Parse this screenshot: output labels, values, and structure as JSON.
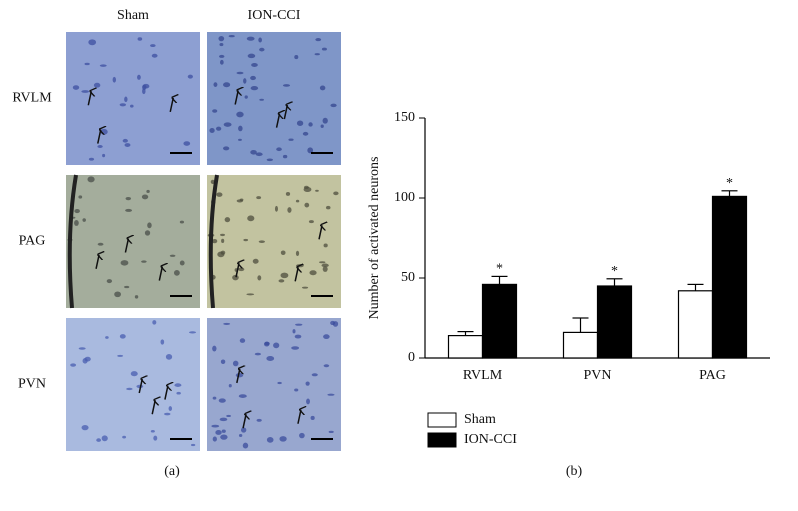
{
  "panel_a": {
    "columns": [
      "Sham",
      "ION-CCI"
    ],
    "rows": [
      "RVLM",
      "PAG",
      "PVN"
    ],
    "label": "(a)"
  },
  "chart_data": {
    "type": "bar",
    "panel_label": "(b)",
    "y_label": "Number of activated neurons",
    "categories": [
      "RVLM",
      "PVN",
      "PAG"
    ],
    "series": [
      {
        "name": "Sham",
        "color": "#ffffff",
        "values": [
          14,
          16,
          42
        ],
        "errors": [
          2.5,
          9,
          4
        ]
      },
      {
        "name": "ION-CCI",
        "color": "#000000",
        "values": [
          46,
          45,
          101
        ],
        "errors": [
          5,
          4.5,
          3.5
        ],
        "significance": [
          "*",
          "*",
          "*"
        ]
      }
    ],
    "ylim": [
      0,
      150
    ],
    "yticks": [
      0,
      50,
      100,
      150
    ],
    "legend": "bottom-left"
  }
}
